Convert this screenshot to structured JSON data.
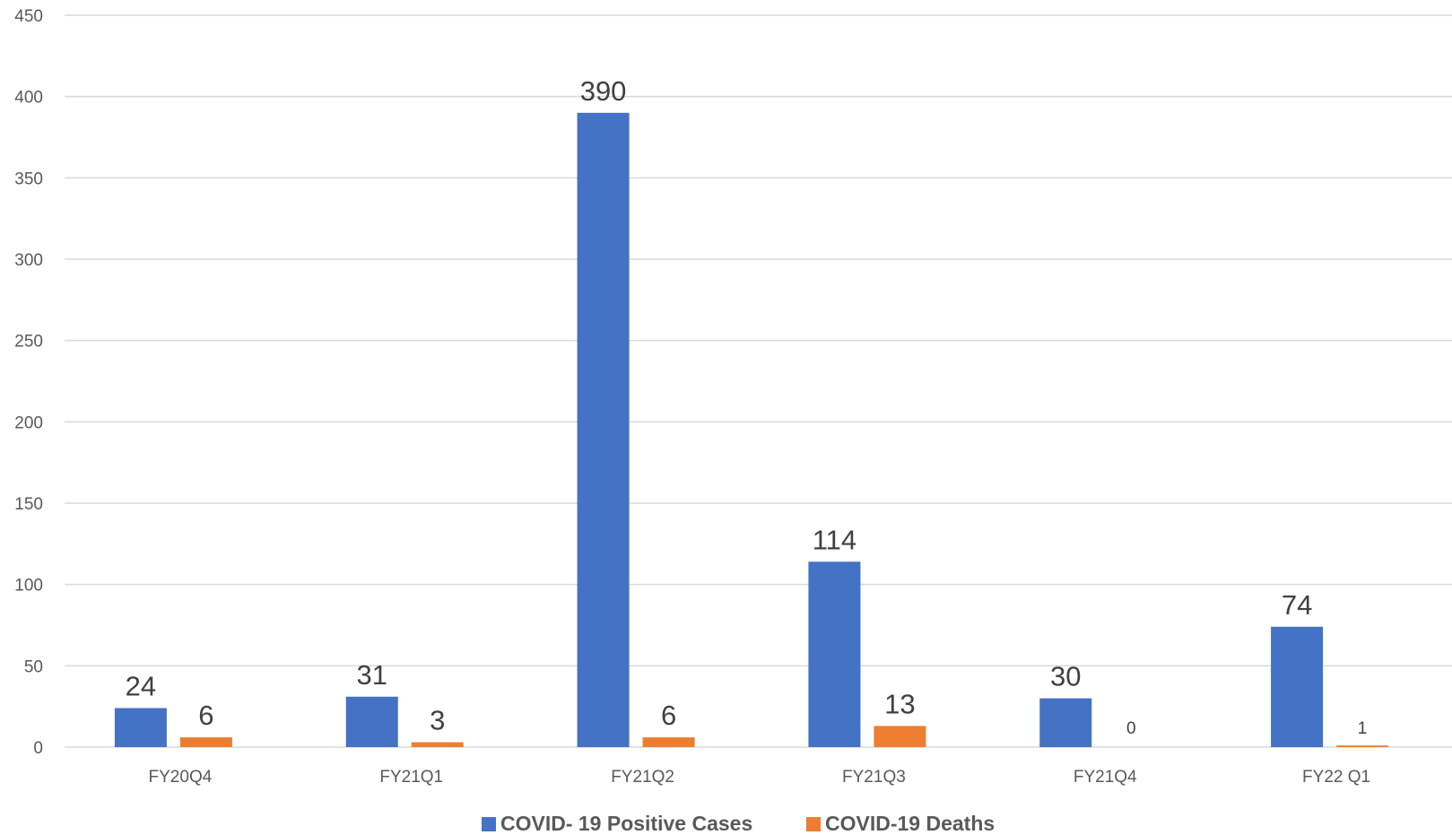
{
  "chart_data": {
    "type": "bar",
    "categories": [
      "FY20Q4",
      "FY21Q1",
      "FY21Q2",
      "FY21Q3",
      "FY21Q4",
      "FY22 Q1"
    ],
    "series": [
      {
        "name": "COVID- 19 Positive Cases",
        "values": [
          24,
          31,
          390,
          114,
          30,
          74
        ],
        "color": "#4472C4"
      },
      {
        "name": "COVID-19 Deaths",
        "values": [
          6,
          3,
          6,
          13,
          0,
          1
        ],
        "color": "#ED7D31"
      }
    ],
    "ylim": [
      0,
      450
    ],
    "yticks": [
      0,
      50,
      100,
      150,
      200,
      250,
      300,
      350,
      400,
      450
    ],
    "grid": true,
    "legend_position": "bottom",
    "title": "",
    "xlabel": "",
    "ylabel": ""
  },
  "colors": {
    "grid": "#D9D9D9",
    "axis_text": "#595959",
    "label_text": "#404040"
  }
}
